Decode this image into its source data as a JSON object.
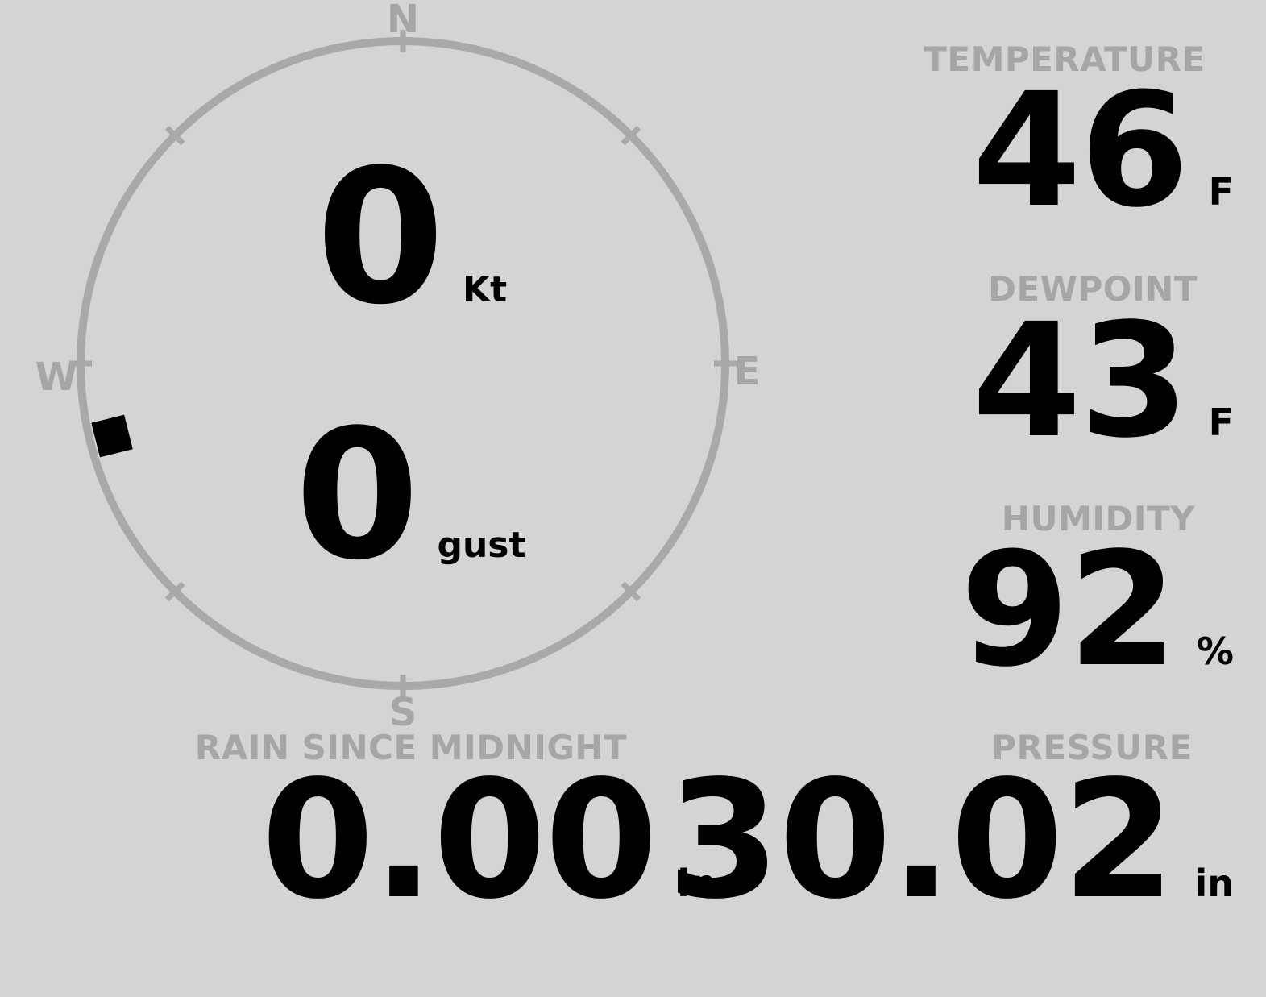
{
  "colors": {
    "background": "#d4d4d4",
    "label_gray": "#a6a6a6",
    "ring_gray": "#a9a9a9",
    "value_black": "#000000"
  },
  "wind_gauge": {
    "compass_labels": {
      "north": "N",
      "east": "E",
      "south": "S",
      "west": "W"
    },
    "speed": {
      "value": "0",
      "unit": "Kt"
    },
    "gust": {
      "value": "0",
      "unit": "gust"
    },
    "direction_deg": 256
  },
  "readings": {
    "temperature": {
      "label": "TEMPERATURE",
      "value": "46",
      "unit": "F"
    },
    "dewpoint": {
      "label": "DEWPOINT",
      "value": "43",
      "unit": "F"
    },
    "humidity": {
      "label": "HUMIDITY",
      "value": "92",
      "unit": "%"
    },
    "rain_since_midnight": {
      "label": "RAIN SINCE MIDNIGHT",
      "value": "0.00",
      "unit": "in"
    },
    "pressure": {
      "label": "PRESSURE",
      "value": "30.02",
      "unit": "in"
    }
  }
}
